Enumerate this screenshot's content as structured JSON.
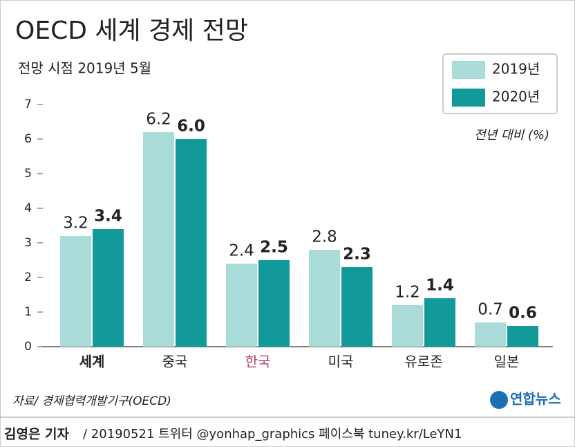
{
  "chart_data": {
    "type": "bar",
    "title": "OECD 세계 경제 전망",
    "subtitle": "전망 시점 2019년 5월",
    "unit_label": "전년 대비 (%)",
    "categories": [
      "세계",
      "중국",
      "한국",
      "미국",
      "유로존",
      "일본"
    ],
    "series": [
      {
        "name": "2019년",
        "color": "#a9dcd9",
        "values": [
          3.2,
          6.2,
          2.4,
          2.8,
          1.2,
          0.7
        ],
        "value_labels": [
          "3.2",
          "6.2",
          "2.4",
          "2.8",
          "1.2",
          "0.7"
        ]
      },
      {
        "name": "2020년",
        "color": "#12999a",
        "values": [
          3.4,
          6.0,
          2.5,
          2.3,
          1.4,
          0.6
        ],
        "value_labels": [
          "3.4",
          "6.0",
          "2.5",
          "2.3",
          "1.4",
          "0.6"
        ]
      }
    ],
    "ylim": [
      0,
      7
    ],
    "yticks": [
      0,
      1,
      2,
      3,
      4,
      5,
      6,
      7
    ],
    "legend": "top-right",
    "source": "자료/ 경제협력개발기구(OECD)",
    "logo": "연합뉴스",
    "author": "김영은 기자",
    "credit": "/ 20190521  트위터 @yonhap_graphics  페이스북 tuney.kr/LeYN1"
  }
}
